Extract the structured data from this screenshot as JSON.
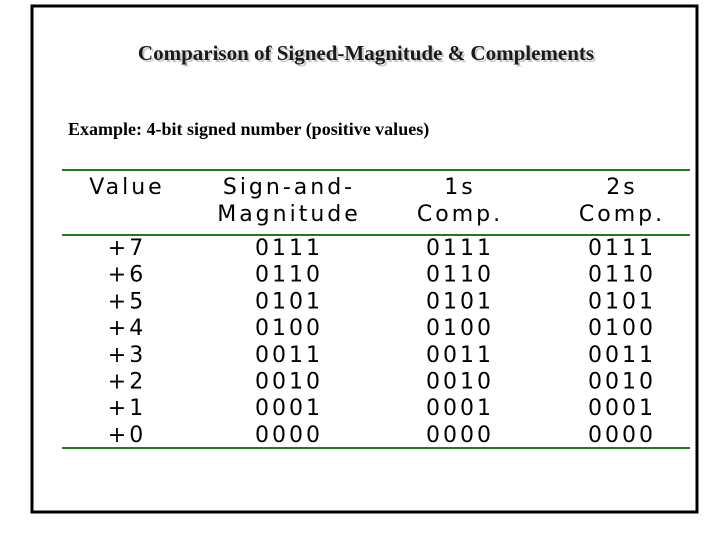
{
  "title": "Comparison of Signed-Magnitude & Complements",
  "subtitle": "Example:  4-bit signed number (positive values)",
  "table": {
    "headers": [
      [
        "Value"
      ],
      [
        "Sign-and-",
        "Magnitude"
      ],
      [
        "1s",
        "Comp."
      ],
      [
        "2s",
        "Comp."
      ]
    ],
    "rows": [
      [
        "+7",
        "0111",
        "0111",
        "0111"
      ],
      [
        "+6",
        "0110",
        "0110",
        "0110"
      ],
      [
        "+5",
        "0101",
        "0101",
        "0101"
      ],
      [
        "+4",
        "0100",
        "0100",
        "0100"
      ],
      [
        "+3",
        "0011",
        "0011",
        "0011"
      ],
      [
        "+2",
        "0010",
        "0010",
        "0010"
      ],
      [
        "+1",
        "0001",
        "0001",
        "0001"
      ],
      [
        "+0",
        "0000",
        "0000",
        "0000"
      ]
    ]
  }
}
